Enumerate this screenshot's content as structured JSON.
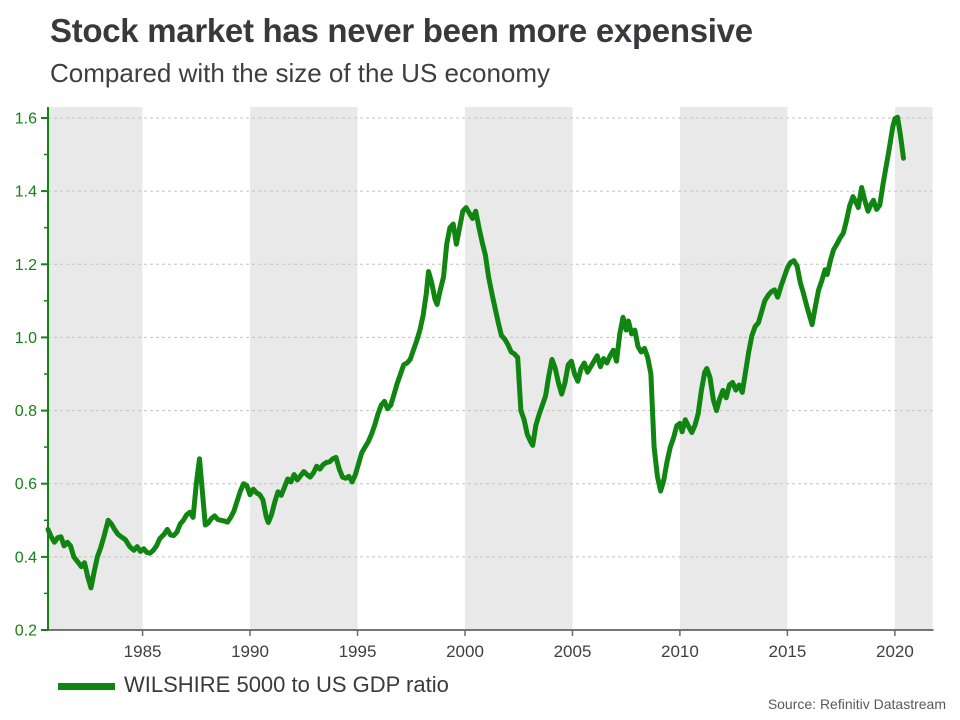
{
  "source_note": "Source: Refinitiv Datastream",
  "colors": {
    "line": "#118511",
    "band": "#e9e9e9",
    "grid": "#c4c4c4",
    "axis_y": "#118511",
    "axis_x": "#4a4a4a",
    "tick_x": "#6a6a6a",
    "tick_label_y": "#118511",
    "tick_label_x": "#404040",
    "title": "#39393d",
    "subtitle": "#3e3e3e",
    "source": "#595959"
  },
  "chart_data": {
    "type": "line",
    "title": "Stock market has never been more expensive",
    "subtitle": "Compared with the size of the US economy",
    "xlabel": "",
    "ylabel": "",
    "xlim": [
      1980.6,
      2021.75
    ],
    "ylim": [
      0.2,
      1.63
    ],
    "x_ticks": [
      1985,
      1990,
      1995,
      2000,
      2005,
      2010,
      2015,
      2020
    ],
    "y_ticks": [
      0.2,
      0.4,
      0.6,
      0.8,
      1.0,
      1.2,
      1.4,
      1.6
    ],
    "y_tick_labels": [
      "0.2",
      "0.4",
      "0.6",
      "0.8",
      "1.0",
      "1.2",
      "1.4",
      "1.6"
    ],
    "y_minor_ticks": [
      0.3,
      0.5,
      0.7,
      0.9,
      1.1,
      1.3,
      1.5
    ],
    "grid": "horizontal-dashed",
    "legend_position": "bottom-left",
    "bands": [
      [
        1980.6,
        1985
      ],
      [
        1990,
        1995
      ],
      [
        2000,
        2005
      ],
      [
        2010,
        2015
      ],
      [
        2020,
        2021.75
      ]
    ],
    "series": [
      {
        "name": "WILSHIRE 5000 to US GDP ratio",
        "color": "#118511",
        "points": [
          [
            1980.6,
            0.475
          ],
          [
            1980.75,
            0.455
          ],
          [
            1980.9,
            0.44
          ],
          [
            1981.05,
            0.452
          ],
          [
            1981.2,
            0.455
          ],
          [
            1981.35,
            0.43
          ],
          [
            1981.5,
            0.44
          ],
          [
            1981.65,
            0.43
          ],
          [
            1981.8,
            0.4
          ],
          [
            1982.0,
            0.385
          ],
          [
            1982.15,
            0.373
          ],
          [
            1982.3,
            0.384
          ],
          [
            1982.45,
            0.345
          ],
          [
            1982.6,
            0.315
          ],
          [
            1982.75,
            0.36
          ],
          [
            1982.9,
            0.4
          ],
          [
            1983.05,
            0.425
          ],
          [
            1983.2,
            0.455
          ],
          [
            1983.4,
            0.5
          ],
          [
            1983.55,
            0.49
          ],
          [
            1983.7,
            0.475
          ],
          [
            1983.85,
            0.462
          ],
          [
            1984.0,
            0.455
          ],
          [
            1984.2,
            0.447
          ],
          [
            1984.4,
            0.428
          ],
          [
            1984.6,
            0.418
          ],
          [
            1984.75,
            0.428
          ],
          [
            1984.9,
            0.415
          ],
          [
            1985.05,
            0.422
          ],
          [
            1985.2,
            0.412
          ],
          [
            1985.35,
            0.41
          ],
          [
            1985.5,
            0.418
          ],
          [
            1985.65,
            0.43
          ],
          [
            1985.8,
            0.45
          ],
          [
            1986.0,
            0.462
          ],
          [
            1986.15,
            0.475
          ],
          [
            1986.3,
            0.46
          ],
          [
            1986.45,
            0.458
          ],
          [
            1986.6,
            0.468
          ],
          [
            1986.75,
            0.49
          ],
          [
            1986.9,
            0.5
          ],
          [
            1987.05,
            0.515
          ],
          [
            1987.2,
            0.522
          ],
          [
            1987.35,
            0.508
          ],
          [
            1987.5,
            0.6
          ],
          [
            1987.65,
            0.668
          ],
          [
            1987.8,
            0.565
          ],
          [
            1987.92,
            0.487
          ],
          [
            1988.05,
            0.492
          ],
          [
            1988.2,
            0.505
          ],
          [
            1988.35,
            0.512
          ],
          [
            1988.5,
            0.502
          ],
          [
            1988.65,
            0.5
          ],
          [
            1988.8,
            0.498
          ],
          [
            1988.95,
            0.495
          ],
          [
            1989.1,
            0.508
          ],
          [
            1989.25,
            0.525
          ],
          [
            1989.4,
            0.553
          ],
          [
            1989.55,
            0.58
          ],
          [
            1989.7,
            0.6
          ],
          [
            1989.85,
            0.595
          ],
          [
            1990.0,
            0.57
          ],
          [
            1990.15,
            0.585
          ],
          [
            1990.3,
            0.575
          ],
          [
            1990.45,
            0.57
          ],
          [
            1990.6,
            0.556
          ],
          [
            1990.75,
            0.51
          ],
          [
            1990.85,
            0.494
          ],
          [
            1991.0,
            0.515
          ],
          [
            1991.15,
            0.55
          ],
          [
            1991.3,
            0.578
          ],
          [
            1991.45,
            0.568
          ],
          [
            1991.6,
            0.59
          ],
          [
            1991.75,
            0.613
          ],
          [
            1991.9,
            0.605
          ],
          [
            1992.05,
            0.625
          ],
          [
            1992.2,
            0.61
          ],
          [
            1992.35,
            0.622
          ],
          [
            1992.5,
            0.633
          ],
          [
            1992.65,
            0.625
          ],
          [
            1992.8,
            0.618
          ],
          [
            1992.95,
            0.63
          ],
          [
            1993.1,
            0.648
          ],
          [
            1993.25,
            0.64
          ],
          [
            1993.4,
            0.652
          ],
          [
            1993.55,
            0.658
          ],
          [
            1993.7,
            0.66
          ],
          [
            1993.85,
            0.668
          ],
          [
            1994.0,
            0.672
          ],
          [
            1994.15,
            0.64
          ],
          [
            1994.3,
            0.618
          ],
          [
            1994.45,
            0.615
          ],
          [
            1994.6,
            0.62
          ],
          [
            1994.75,
            0.605
          ],
          [
            1994.9,
            0.625
          ],
          [
            1995.05,
            0.655
          ],
          [
            1995.2,
            0.685
          ],
          [
            1995.35,
            0.7
          ],
          [
            1995.5,
            0.715
          ],
          [
            1995.65,
            0.735
          ],
          [
            1995.8,
            0.76
          ],
          [
            1995.95,
            0.79
          ],
          [
            1996.1,
            0.815
          ],
          [
            1996.25,
            0.825
          ],
          [
            1996.4,
            0.805
          ],
          [
            1996.55,
            0.815
          ],
          [
            1996.7,
            0.845
          ],
          [
            1996.85,
            0.875
          ],
          [
            1997.0,
            0.9
          ],
          [
            1997.15,
            0.925
          ],
          [
            1997.3,
            0.93
          ],
          [
            1997.45,
            0.94
          ],
          [
            1997.6,
            0.965
          ],
          [
            1997.75,
            0.99
          ],
          [
            1997.9,
            1.02
          ],
          [
            1998.05,
            1.06
          ],
          [
            1998.2,
            1.12
          ],
          [
            1998.3,
            1.18
          ],
          [
            1998.45,
            1.15
          ],
          [
            1998.6,
            1.105
          ],
          [
            1998.7,
            1.09
          ],
          [
            1998.85,
            1.13
          ],
          [
            1999.0,
            1.165
          ],
          [
            1999.15,
            1.255
          ],
          [
            1999.3,
            1.3
          ],
          [
            1999.45,
            1.31
          ],
          [
            1999.6,
            1.255
          ],
          [
            1999.75,
            1.3
          ],
          [
            1999.9,
            1.345
          ],
          [
            2000.05,
            1.355
          ],
          [
            2000.2,
            1.34
          ],
          [
            2000.35,
            1.325
          ],
          [
            2000.5,
            1.345
          ],
          [
            2000.65,
            1.3
          ],
          [
            2000.8,
            1.26
          ],
          [
            2000.95,
            1.225
          ],
          [
            2001.1,
            1.165
          ],
          [
            2001.25,
            1.12
          ],
          [
            2001.4,
            1.08
          ],
          [
            2001.55,
            1.04
          ],
          [
            2001.7,
            1.005
          ],
          [
            2001.85,
            0.995
          ],
          [
            2002.0,
            0.98
          ],
          [
            2002.15,
            0.96
          ],
          [
            2002.3,
            0.955
          ],
          [
            2002.45,
            0.945
          ],
          [
            2002.6,
            0.8
          ],
          [
            2002.75,
            0.775
          ],
          [
            2002.9,
            0.735
          ],
          [
            2003.05,
            0.715
          ],
          [
            2003.15,
            0.705
          ],
          [
            2003.3,
            0.76
          ],
          [
            2003.45,
            0.79
          ],
          [
            2003.6,
            0.815
          ],
          [
            2003.75,
            0.84
          ],
          [
            2003.9,
            0.895
          ],
          [
            2004.05,
            0.94
          ],
          [
            2004.2,
            0.915
          ],
          [
            2004.35,
            0.875
          ],
          [
            2004.5,
            0.845
          ],
          [
            2004.65,
            0.875
          ],
          [
            2004.8,
            0.925
          ],
          [
            2004.95,
            0.935
          ],
          [
            2005.1,
            0.9
          ],
          [
            2005.25,
            0.88
          ],
          [
            2005.4,
            0.915
          ],
          [
            2005.55,
            0.93
          ],
          [
            2005.7,
            0.905
          ],
          [
            2005.85,
            0.92
          ],
          [
            2006.0,
            0.935
          ],
          [
            2006.15,
            0.95
          ],
          [
            2006.3,
            0.92
          ],
          [
            2006.45,
            0.942
          ],
          [
            2006.6,
            0.93
          ],
          [
            2006.75,
            0.95
          ],
          [
            2006.9,
            0.965
          ],
          [
            2007.05,
            0.935
          ],
          [
            2007.2,
            1.01
          ],
          [
            2007.35,
            1.055
          ],
          [
            2007.5,
            1.02
          ],
          [
            2007.6,
            1.045
          ],
          [
            2007.75,
            1.01
          ],
          [
            2007.9,
            1.02
          ],
          [
            2008.05,
            0.975
          ],
          [
            2008.2,
            0.96
          ],
          [
            2008.35,
            0.97
          ],
          [
            2008.5,
            0.945
          ],
          [
            2008.65,
            0.9
          ],
          [
            2008.8,
            0.7
          ],
          [
            2008.95,
            0.62
          ],
          [
            2009.1,
            0.58
          ],
          [
            2009.25,
            0.61
          ],
          [
            2009.4,
            0.66
          ],
          [
            2009.55,
            0.7
          ],
          [
            2009.7,
            0.725
          ],
          [
            2009.85,
            0.758
          ],
          [
            2010.0,
            0.765
          ],
          [
            2010.1,
            0.742
          ],
          [
            2010.25,
            0.775
          ],
          [
            2010.4,
            0.757
          ],
          [
            2010.55,
            0.74
          ],
          [
            2010.7,
            0.76
          ],
          [
            2010.85,
            0.792
          ],
          [
            2011.0,
            0.855
          ],
          [
            2011.15,
            0.905
          ],
          [
            2011.25,
            0.915
          ],
          [
            2011.4,
            0.89
          ],
          [
            2011.55,
            0.83
          ],
          [
            2011.7,
            0.8
          ],
          [
            2011.85,
            0.832
          ],
          [
            2012.0,
            0.855
          ],
          [
            2012.15,
            0.835
          ],
          [
            2012.3,
            0.87
          ],
          [
            2012.45,
            0.877
          ],
          [
            2012.6,
            0.856
          ],
          [
            2012.75,
            0.87
          ],
          [
            2012.9,
            0.85
          ],
          [
            2013.05,
            0.905
          ],
          [
            2013.2,
            0.96
          ],
          [
            2013.35,
            1.005
          ],
          [
            2013.5,
            1.03
          ],
          [
            2013.65,
            1.04
          ],
          [
            2013.8,
            1.07
          ],
          [
            2013.95,
            1.1
          ],
          [
            2014.1,
            1.115
          ],
          [
            2014.25,
            1.125
          ],
          [
            2014.4,
            1.13
          ],
          [
            2014.55,
            1.11
          ],
          [
            2014.7,
            1.14
          ],
          [
            2014.85,
            1.165
          ],
          [
            2015.0,
            1.19
          ],
          [
            2015.15,
            1.205
          ],
          [
            2015.3,
            1.21
          ],
          [
            2015.45,
            1.195
          ],
          [
            2015.6,
            1.15
          ],
          [
            2015.75,
            1.12
          ],
          [
            2015.9,
            1.085
          ],
          [
            2016.05,
            1.055
          ],
          [
            2016.15,
            1.035
          ],
          [
            2016.3,
            1.085
          ],
          [
            2016.45,
            1.13
          ],
          [
            2016.6,
            1.155
          ],
          [
            2016.75,
            1.185
          ],
          [
            2016.85,
            1.172
          ],
          [
            2017.0,
            1.21
          ],
          [
            2017.15,
            1.24
          ],
          [
            2017.3,
            1.255
          ],
          [
            2017.45,
            1.272
          ],
          [
            2017.6,
            1.285
          ],
          [
            2017.75,
            1.32
          ],
          [
            2017.9,
            1.36
          ],
          [
            2018.05,
            1.385
          ],
          [
            2018.2,
            1.368
          ],
          [
            2018.3,
            1.355
          ],
          [
            2018.45,
            1.41
          ],
          [
            2018.6,
            1.375
          ],
          [
            2018.75,
            1.345
          ],
          [
            2018.9,
            1.365
          ],
          [
            2019.0,
            1.375
          ],
          [
            2019.15,
            1.35
          ],
          [
            2019.3,
            1.362
          ],
          [
            2019.45,
            1.42
          ],
          [
            2019.6,
            1.47
          ],
          [
            2019.75,
            1.52
          ],
          [
            2019.9,
            1.575
          ],
          [
            2020.0,
            1.598
          ],
          [
            2020.12,
            1.602
          ],
          [
            2020.25,
            1.555
          ],
          [
            2020.4,
            1.49
          ]
        ]
      }
    ]
  }
}
